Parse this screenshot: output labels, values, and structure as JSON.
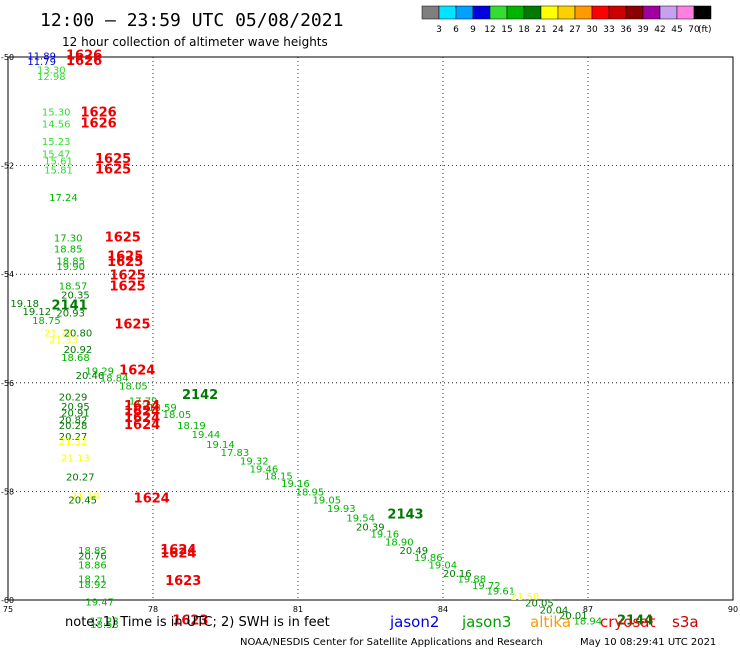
{
  "header": {
    "title": "12:00 — 23:59 UTC 05/08/2021",
    "subtitle": "12 hour collection of altimeter wave heights"
  },
  "colorbar": {
    "unit": "(ft)",
    "entries": [
      {
        "label": "3",
        "color": "#7f7f7f"
      },
      {
        "label": "6",
        "color": "#00e5ff"
      },
      {
        "label": "9",
        "color": "#00a0ff"
      },
      {
        "label": "12",
        "color": "#0000e0"
      },
      {
        "label": "15",
        "color": "#33dd33"
      },
      {
        "label": "18",
        "color": "#00b400"
      },
      {
        "label": "21",
        "color": "#007a00"
      },
      {
        "label": "24",
        "color": "#ffff00"
      },
      {
        "label": "27",
        "color": "#ffd000"
      },
      {
        "label": "30",
        "color": "#ff9a00"
      },
      {
        "label": "33",
        "color": "#ff0000"
      },
      {
        "label": "36",
        "color": "#cc0000"
      },
      {
        "label": "39",
        "color": "#8b0000"
      },
      {
        "label": "42",
        "color": "#a000a0"
      },
      {
        "label": "45",
        "color": "#c8a0f0"
      },
      {
        "label": "70",
        "color": "#ff80e0"
      },
      {
        "label": "",
        "color": "#000000"
      }
    ]
  },
  "map": {
    "x_ticks": [
      "75",
      "78",
      "81",
      "84",
      "87",
      "90"
    ],
    "y_ticks": [
      "-50",
      "-52",
      "-54",
      "-56",
      "-58",
      "-60"
    ],
    "lon_range": [
      75,
      90
    ],
    "lat_range": [
      -60,
      -50
    ],
    "grid": "dotted"
  },
  "chart_data": {
    "type": "scatter",
    "x_axis": "longitude",
    "y_axis": "latitude",
    "points": [
      {
        "lon": 75.4,
        "lat": -50.05,
        "label": "11.89",
        "color": "#0000e0"
      },
      {
        "lon": 75.4,
        "lat": -50.15,
        "label": "11.79",
        "color": "#0000e0"
      },
      {
        "lon": 75.6,
        "lat": -50.3,
        "label": "13.30",
        "color": "#33dd33"
      },
      {
        "lon": 75.6,
        "lat": -50.42,
        "label": "12.98",
        "color": "#33dd33"
      },
      {
        "lon": 75.7,
        "lat": -51.08,
        "label": "15.30",
        "color": "#33dd33"
      },
      {
        "lon": 75.7,
        "lat": -51.3,
        "label": "14.56",
        "color": "#33dd33"
      },
      {
        "lon": 75.7,
        "lat": -51.62,
        "label": "15.23",
        "color": "#33dd33"
      },
      {
        "lon": 75.7,
        "lat": -51.85,
        "label": "15.47",
        "color": "#33dd33"
      },
      {
        "lon": 75.75,
        "lat": -51.98,
        "label": "15.61",
        "color": "#33dd33"
      },
      {
        "lon": 75.75,
        "lat": -52.15,
        "label": "15.81",
        "color": "#33dd33"
      },
      {
        "lon": 75.85,
        "lat": -52.65,
        "label": "17.24",
        "color": "#00b400"
      },
      {
        "lon": 75.95,
        "lat": -53.4,
        "label": "17.30",
        "color": "#00b400"
      },
      {
        "lon": 75.95,
        "lat": -53.6,
        "label": "18.85",
        "color": "#00b400"
      },
      {
        "lon": 76.0,
        "lat": -53.82,
        "label": "18.85",
        "color": "#00b400"
      },
      {
        "lon": 76.0,
        "lat": -53.92,
        "label": "19.90",
        "color": "#00b400"
      },
      {
        "lon": 76.05,
        "lat": -54.28,
        "label": "18.57",
        "color": "#00b400"
      },
      {
        "lon": 76.1,
        "lat": -54.45,
        "label": "20.35",
        "color": "#007a00"
      },
      {
        "lon": 75.05,
        "lat": -54.6,
        "label": "19.18",
        "color": "#007a00"
      },
      {
        "lon": 75.3,
        "lat": -54.75,
        "label": "19.12",
        "color": "#007a00"
      },
      {
        "lon": 75.5,
        "lat": -54.92,
        "label": "18.75",
        "color": "#00b400"
      },
      {
        "lon": 76.0,
        "lat": -54.78,
        "label": "20.93",
        "color": "#007a00"
      },
      {
        "lon": 75.75,
        "lat": -55.15,
        "label": "21.72",
        "color": "#ffff00"
      },
      {
        "lon": 76.15,
        "lat": -55.15,
        "label": "20.80",
        "color": "#007a00"
      },
      {
        "lon": 75.85,
        "lat": -55.28,
        "label": "21.33",
        "color": "#ffff00"
      },
      {
        "lon": 76.15,
        "lat": -55.45,
        "label": "20.92",
        "color": "#007a00"
      },
      {
        "lon": 76.1,
        "lat": -55.6,
        "label": "18.68",
        "color": "#00b400"
      },
      {
        "lon": 76.6,
        "lat": -55.85,
        "label": "19.29",
        "color": "#00b400"
      },
      {
        "lon": 76.4,
        "lat": -55.93,
        "label": "20.46",
        "color": "#007a00"
      },
      {
        "lon": 76.9,
        "lat": -55.98,
        "label": "18.84",
        "color": "#00b400"
      },
      {
        "lon": 77.3,
        "lat": -56.12,
        "label": "18.05",
        "color": "#00b400"
      },
      {
        "lon": 76.05,
        "lat": -56.33,
        "label": "20.29",
        "color": "#007a00"
      },
      {
        "lon": 77.5,
        "lat": -56.4,
        "label": "17.79",
        "color": "#00b400"
      },
      {
        "lon": 76.1,
        "lat": -56.5,
        "label": "20.95",
        "color": "#007a00"
      },
      {
        "lon": 77.9,
        "lat": -56.52,
        "label": "18.59",
        "color": "#00b400"
      },
      {
        "lon": 76.1,
        "lat": -56.62,
        "label": "20.91",
        "color": "#007a00"
      },
      {
        "lon": 78.2,
        "lat": -56.65,
        "label": "18.05",
        "color": "#00b400"
      },
      {
        "lon": 76.05,
        "lat": -56.75,
        "label": "20.82",
        "color": "#007a00"
      },
      {
        "lon": 76.05,
        "lat": -56.85,
        "label": "20.28",
        "color": "#007a00"
      },
      {
        "lon": 78.5,
        "lat": -56.85,
        "label": "18.19",
        "color": "#00b400"
      },
      {
        "lon": 78.8,
        "lat": -57.02,
        "label": "19.44",
        "color": "#00b400"
      },
      {
        "lon": 76.05,
        "lat": -57.05,
        "label": "20.27",
        "color": "#007a00"
      },
      {
        "lon": 76.05,
        "lat": -57.15,
        "label": "21.32",
        "color": "#ffff00"
      },
      {
        "lon": 79.1,
        "lat": -57.2,
        "label": "19.14",
        "color": "#00b400"
      },
      {
        "lon": 79.4,
        "lat": -57.35,
        "label": "17.83",
        "color": "#00b400"
      },
      {
        "lon": 76.1,
        "lat": -57.45,
        "label": "21.13",
        "color": "#ffff00"
      },
      {
        "lon": 79.8,
        "lat": -57.5,
        "label": "19.32",
        "color": "#00b400"
      },
      {
        "lon": 80.0,
        "lat": -57.65,
        "label": "19.46",
        "color": "#00b400"
      },
      {
        "lon": 76.2,
        "lat": -57.8,
        "label": "20.27",
        "color": "#007a00"
      },
      {
        "lon": 80.3,
        "lat": -57.78,
        "label": "18.15",
        "color": "#00b400"
      },
      {
        "lon": 80.65,
        "lat": -57.92,
        "label": "19.16",
        "color": "#00b400"
      },
      {
        "lon": 80.95,
        "lat": -58.08,
        "label": "18.95",
        "color": "#00b400"
      },
      {
        "lon": 76.3,
        "lat": -58.15,
        "label": "21.10",
        "color": "#ffff00"
      },
      {
        "lon": 76.25,
        "lat": -58.22,
        "label": "20.45",
        "color": "#007a00"
      },
      {
        "lon": 81.3,
        "lat": -58.22,
        "label": "19.05",
        "color": "#00b400"
      },
      {
        "lon": 81.6,
        "lat": -58.38,
        "label": "19.93",
        "color": "#00b400"
      },
      {
        "lon": 82.0,
        "lat": -58.55,
        "label": "19.54",
        "color": "#00b400"
      },
      {
        "lon": 82.2,
        "lat": -58.72,
        "label": "20.39",
        "color": "#007a00"
      },
      {
        "lon": 82.5,
        "lat": -58.85,
        "label": "19.16",
        "color": "#00b400"
      },
      {
        "lon": 82.8,
        "lat": -59.0,
        "label": "18.90",
        "color": "#00b400"
      },
      {
        "lon": 76.45,
        "lat": -59.15,
        "label": "18.85",
        "color": "#00b400"
      },
      {
        "lon": 83.1,
        "lat": -59.15,
        "label": "20.49",
        "color": "#007a00"
      },
      {
        "lon": 76.45,
        "lat": -59.25,
        "label": "20.76",
        "color": "#007a00"
      },
      {
        "lon": 83.4,
        "lat": -59.28,
        "label": "19.86",
        "color": "#00b400"
      },
      {
        "lon": 76.45,
        "lat": -59.42,
        "label": "18.86",
        "color": "#00b400"
      },
      {
        "lon": 83.7,
        "lat": -59.42,
        "label": "19.04",
        "color": "#00b400"
      },
      {
        "lon": 84.0,
        "lat": -59.58,
        "label": "20.16",
        "color": "#007a00"
      },
      {
        "lon": 76.45,
        "lat": -59.68,
        "label": "18.21",
        "color": "#00b400"
      },
      {
        "lon": 84.3,
        "lat": -59.68,
        "label": "19.88",
        "color": "#00b400"
      },
      {
        "lon": 76.45,
        "lat": -59.78,
        "label": "18.92",
        "color": "#00b400"
      },
      {
        "lon": 84.6,
        "lat": -59.8,
        "label": "19.72",
        "color": "#00b400"
      },
      {
        "lon": 84.9,
        "lat": -59.9,
        "label": "19.61",
        "color": "#00b400"
      },
      {
        "lon": 76.6,
        "lat": -60.1,
        "label": "19.47",
        "color": "#00b400"
      },
      {
        "lon": 85.4,
        "lat": -60.0,
        "label": "21.50",
        "color": "#ffff00"
      },
      {
        "lon": 85.7,
        "lat": -60.12,
        "label": "20.05",
        "color": "#007a00"
      },
      {
        "lon": 86.0,
        "lat": -60.25,
        "label": "20.04",
        "color": "#007a00"
      },
      {
        "lon": 86.4,
        "lat": -60.35,
        "label": "20.01",
        "color": "#007a00"
      },
      {
        "lon": 76.7,
        "lat": -60.45,
        "label": "17.23",
        "color": "#00b400"
      },
      {
        "lon": 86.7,
        "lat": -60.45,
        "label": "18.94",
        "color": "#00b400"
      },
      {
        "lon": 76.7,
        "lat": -60.52,
        "label": "18.53",
        "color": "#00b400"
      }
    ],
    "times": [
      {
        "lon": 76.2,
        "lat": -50.05,
        "label": "1626",
        "color": "#ee0000"
      },
      {
        "lon": 76.2,
        "lat": -50.15,
        "label": "1626",
        "color": "#ee0000"
      },
      {
        "lon": 76.5,
        "lat": -51.1,
        "label": "1626",
        "color": "#ee0000"
      },
      {
        "lon": 76.5,
        "lat": -51.3,
        "label": "1626",
        "color": "#ee0000"
      },
      {
        "lon": 76.8,
        "lat": -51.95,
        "label": "1625",
        "color": "#ee0000"
      },
      {
        "lon": 76.8,
        "lat": -52.15,
        "label": "1625",
        "color": "#ee0000"
      },
      {
        "lon": 77.0,
        "lat": -53.4,
        "label": "1625",
        "color": "#ee0000"
      },
      {
        "lon": 77.05,
        "lat": -53.75,
        "label": "1625",
        "color": "#ee0000"
      },
      {
        "lon": 77.05,
        "lat": -53.85,
        "label": "1625",
        "color": "#ee0000"
      },
      {
        "lon": 77.1,
        "lat": -54.1,
        "label": "1625",
        "color": "#ee0000"
      },
      {
        "lon": 77.1,
        "lat": -54.3,
        "label": "1625",
        "color": "#ee0000"
      },
      {
        "lon": 75.9,
        "lat": -54.65,
        "label": "2141",
        "color": "#007a00"
      },
      {
        "lon": 77.2,
        "lat": -55.0,
        "label": "1625",
        "color": "#ee0000"
      },
      {
        "lon": 77.3,
        "lat": -55.85,
        "label": "1624",
        "color": "#ee0000"
      },
      {
        "lon": 78.6,
        "lat": -56.3,
        "label": "2142",
        "color": "#007a00"
      },
      {
        "lon": 77.4,
        "lat": -56.5,
        "label": "1624",
        "color": "#ee0000"
      },
      {
        "lon": 77.4,
        "lat": -56.6,
        "label": "1624",
        "color": "#ee0000"
      },
      {
        "lon": 77.4,
        "lat": -56.72,
        "label": "1624",
        "color": "#ee0000"
      },
      {
        "lon": 77.4,
        "lat": -56.85,
        "label": "1624",
        "color": "#ee0000"
      },
      {
        "lon": 77.6,
        "lat": -58.2,
        "label": "1624",
        "color": "#ee0000"
      },
      {
        "lon": 82.85,
        "lat": -58.5,
        "label": "2143",
        "color": "#007a00"
      },
      {
        "lon": 78.15,
        "lat": -59.15,
        "label": "1624",
        "color": "#ee0000"
      },
      {
        "lon": 78.15,
        "lat": -59.22,
        "label": "1624",
        "color": "#ee0000"
      },
      {
        "lon": 78.25,
        "lat": -59.72,
        "label": "1623",
        "color": "#ee0000"
      },
      {
        "lon": 87.6,
        "lat": -60.45,
        "label": "2144",
        "color": "#007a00"
      },
      {
        "lon": 78.4,
        "lat": -60.45,
        "label": "1623",
        "color": "#ee0000"
      }
    ]
  },
  "footer": {
    "note": "note: 1) Time is in UTC; 2) SWH is in feet",
    "satellites": [
      {
        "name": "jason2",
        "color": "#0000e0"
      },
      {
        "name": "jason3",
        "color": "#00a000"
      },
      {
        "name": "altika",
        "color": "#ff9a00"
      },
      {
        "name": "cryosat",
        "color": "#ee0000"
      },
      {
        "name": "s3a",
        "color": "#cc0000"
      }
    ],
    "credit": "NOAA/NESDIS Center for Satellite Applications and Research",
    "timestamp": "May 10 08:29:41 UTC 2021"
  }
}
